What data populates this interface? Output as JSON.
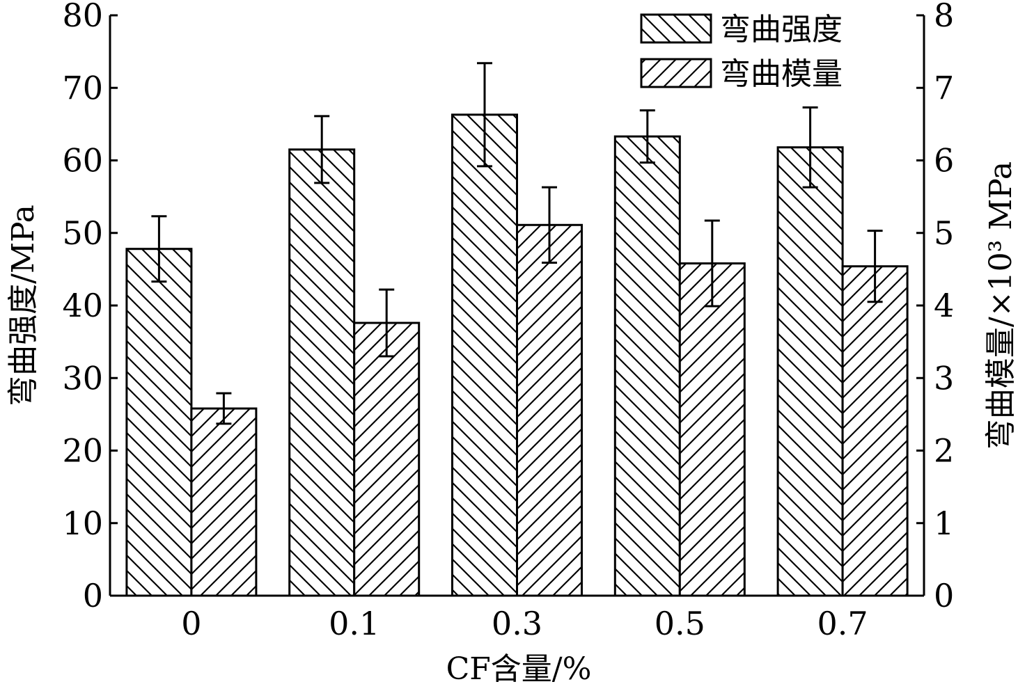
{
  "chart_data": {
    "type": "bar",
    "categories": [
      "0",
      "0.1",
      "0.3",
      "0.5",
      "0.7"
    ],
    "xlabel": "CF含量/%",
    "ylabel_left": "弯曲强度/MPa",
    "ylabel_right": "弯曲模量/×10³ MPa",
    "ylim_left": [
      0,
      80
    ],
    "ylim_right": [
      0,
      8
    ],
    "yticks_left": [
      "0",
      "10",
      "20",
      "30",
      "40",
      "50",
      "60",
      "70",
      "80"
    ],
    "yticks_right": [
      "0",
      "1",
      "2",
      "3",
      "4",
      "5",
      "6",
      "7",
      "8"
    ],
    "grid": false,
    "legend_position": "top-right",
    "series": [
      {
        "name": "弯曲强度",
        "axis": "left",
        "hatch": "backslash",
        "values": [
          47.8,
          61.5,
          66.3,
          63.3,
          61.8
        ],
        "errors": [
          4.5,
          4.6,
          7.1,
          3.6,
          5.5
        ]
      },
      {
        "name": "弯曲模量",
        "axis": "right",
        "hatch": "slash",
        "values": [
          2.58,
          3.76,
          5.11,
          4.58,
          4.54
        ],
        "errors": [
          0.21,
          0.46,
          0.52,
          0.59,
          0.49
        ]
      }
    ],
    "colors": {
      "line": "#000000",
      "fill": "#ffffff"
    }
  }
}
